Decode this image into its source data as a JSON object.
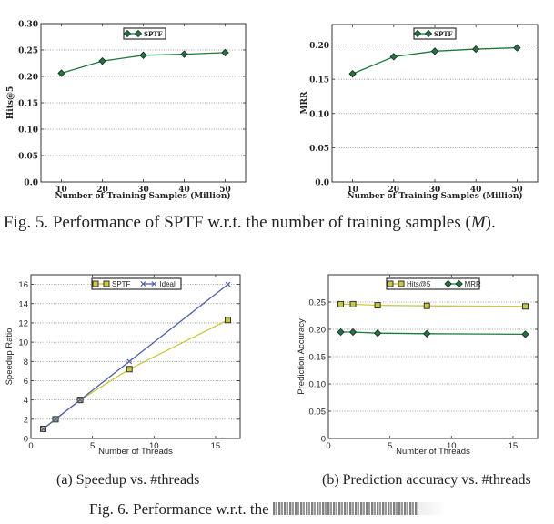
{
  "chart_data": [
    {
      "id": "fig5-hits",
      "type": "line",
      "title": "",
      "xlabel": "Number of Training Samples (Million)",
      "ylabel": "Hits@5",
      "x": [
        10,
        20,
        30,
        40,
        50
      ],
      "xticks": [
        10,
        20,
        30,
        40,
        50
      ],
      "xlim": [
        5,
        55
      ],
      "ylim": [
        0,
        0.3
      ],
      "yticks": [
        "0.0",
        "0.05",
        "0.10",
        "0.15",
        "0.20",
        "0.25",
        "0.30"
      ],
      "grid": "horizontal-dotted",
      "legend": "top-center",
      "series": [
        {
          "name": "SPTF",
          "values": [
            0.206,
            0.229,
            0.24,
            0.242,
            0.245
          ],
          "color": "#1a7a3c",
          "marker": "diamond"
        }
      ]
    },
    {
      "id": "fig5-mrr",
      "type": "line",
      "title": "",
      "xlabel": "Number of Training Samples (Million)",
      "ylabel": "MRR",
      "x": [
        10,
        20,
        30,
        40,
        50
      ],
      "xticks": [
        10,
        20,
        30,
        40,
        50
      ],
      "xlim": [
        5,
        55
      ],
      "ylim": [
        0,
        0.23
      ],
      "yticks": [
        "0.0",
        "0.05",
        "0.10",
        "0.15",
        "0.20"
      ],
      "grid": "horizontal-dotted",
      "legend": "top-center",
      "series": [
        {
          "name": "SPTF",
          "values": [
            0.158,
            0.183,
            0.191,
            0.194,
            0.196
          ],
          "color": "#1a7a3c",
          "marker": "diamond"
        }
      ]
    },
    {
      "id": "fig6-speedup",
      "type": "line",
      "title": "",
      "xlabel": "Number of Threads",
      "ylabel": "Speedup Ratio",
      "x": [
        1,
        2,
        4,
        8,
        16
      ],
      "xticks": [
        0,
        5,
        10,
        15
      ],
      "xlim": [
        0,
        17
      ],
      "ylim": [
        0,
        17
      ],
      "yticks": [
        "0",
        "2",
        "4",
        "6",
        "8",
        "10",
        "12",
        "14",
        "16"
      ],
      "grid": "horizontal-dotted",
      "legend": "top-right",
      "series": [
        {
          "name": "SPTF",
          "values": [
            1,
            2,
            4,
            7.2,
            12.3
          ],
          "color": "#c9c940",
          "marker": "square"
        },
        {
          "name": "Ideal",
          "values": [
            1,
            2,
            4,
            8,
            16
          ],
          "color": "#4a5fb0",
          "marker": "x"
        }
      ]
    },
    {
      "id": "fig6-accuracy",
      "type": "line",
      "title": "",
      "xlabel": "Number of Threads",
      "ylabel": "Prediction Accuracy",
      "x": [
        1,
        2,
        4,
        8,
        16
      ],
      "xticks": [
        0,
        5,
        10,
        15
      ],
      "xlim": [
        0,
        17
      ],
      "ylim": [
        0,
        0.3
      ],
      "yticks": [
        "0",
        "0.05",
        "0.10",
        "0.15",
        "0.20",
        "0.25"
      ],
      "grid": "horizontal-dotted",
      "legend": "top-right",
      "series": [
        {
          "name": "Hits@5",
          "values": [
            0.246,
            0.246,
            0.244,
            0.243,
            0.242
          ],
          "color": "#c9c940",
          "marker": "square"
        },
        {
          "name": "MRR",
          "values": [
            0.195,
            0.195,
            0.193,
            0.192,
            0.191
          ],
          "color": "#1a7a3c",
          "marker": "diamond"
        }
      ]
    }
  ],
  "captions": {
    "fig5_prefix": "Fig. 5.  Performance of SPTF w.r.t. the number of training samples (",
    "fig5_var": "M",
    "fig5_suffix": ").",
    "fig6a": "(a) Speedup vs. #threads",
    "fig6b": "(b) Prediction accuracy vs. #threads",
    "fig6_visible": "Fig. 6.  Performance w.r.t. the"
  }
}
